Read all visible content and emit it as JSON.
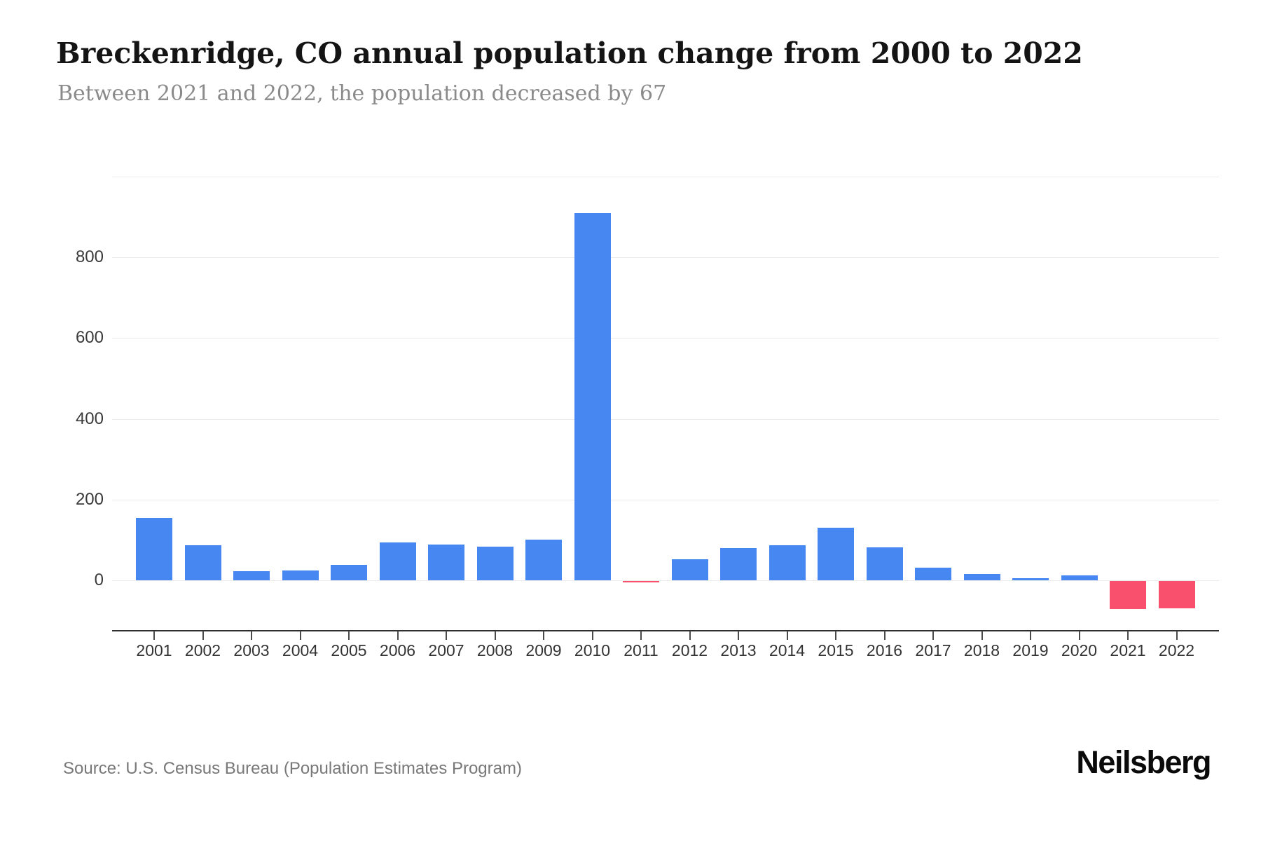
{
  "header": {
    "title": "Breckenridge, CO annual population change from 2000 to 2022",
    "subtitle": "Between 2021 and 2022, the population decreased by 67"
  },
  "chart_data": {
    "type": "bar",
    "title": "Breckenridge, CO annual population change from 2000 to 2022",
    "categories": [
      "2001",
      "2002",
      "2003",
      "2004",
      "2005",
      "2006",
      "2007",
      "2008",
      "2009",
      "2010",
      "2011",
      "2012",
      "2013",
      "2014",
      "2015",
      "2016",
      "2017",
      "2018",
      "2019",
      "2020",
      "2021",
      "2022"
    ],
    "values": [
      155,
      87,
      22,
      24,
      38,
      93,
      88,
      83,
      100,
      910,
      -4,
      52,
      79,
      87,
      130,
      81,
      31,
      15,
      5,
      13,
      -70,
      -67
    ],
    "xlabel": "",
    "ylabel": "",
    "ylim": [
      -125,
      1000
    ],
    "yticks": [
      0,
      200,
      400,
      600,
      800
    ],
    "gridlines": [
      0,
      200,
      400,
      600,
      800,
      1000
    ],
    "grid": "on",
    "legend": "none",
    "colors": {
      "positive": "#4687f1",
      "negative": "#f9506e"
    }
  },
  "footer": {
    "source": "Source: U.S. Census Bureau (Population Estimates Program)",
    "brand": "Neilsberg"
  }
}
